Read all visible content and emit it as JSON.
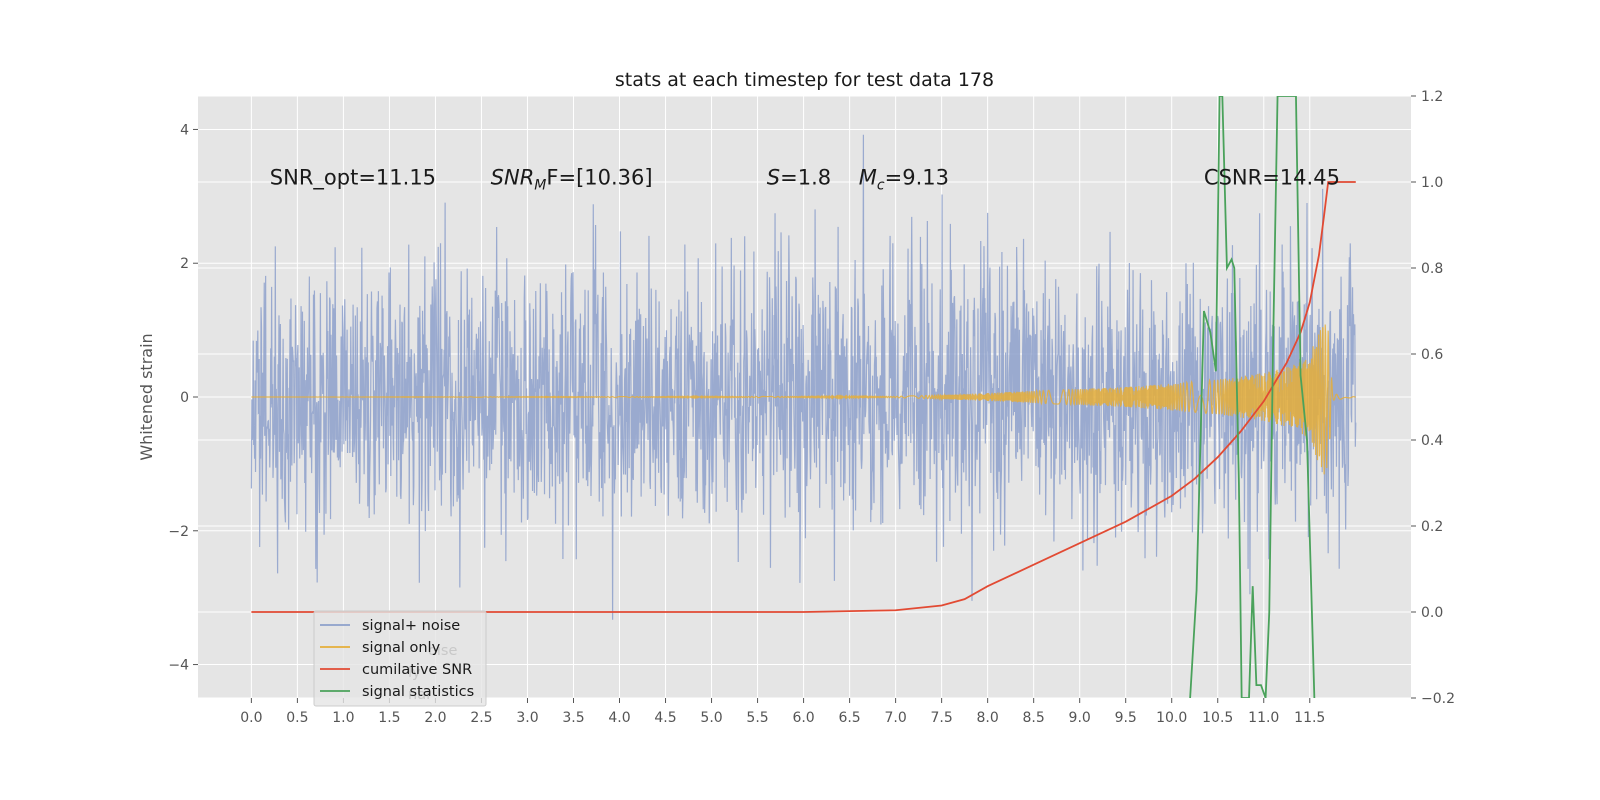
{
  "chart_data": {
    "type": "line",
    "title": "stats at each timestep for test data 178",
    "ylabel": "Whitened strain",
    "xlabel": "",
    "xlim": [
      -0.58,
      12.6
    ],
    "ylim": [
      -4.5,
      4.5
    ],
    "y2lim": [
      -0.2,
      1.2
    ],
    "x_ticks": [
      0.0,
      0.5,
      1.0,
      1.5,
      2.0,
      2.5,
      3.0,
      3.5,
      4.0,
      4.5,
      5.0,
      5.5,
      6.0,
      6.5,
      7.0,
      7.5,
      8.0,
      8.5,
      9.0,
      9.5,
      10.0,
      10.5,
      11.0,
      11.5
    ],
    "x_tick_labels": [
      "0.0",
      "0.5",
      "1.0",
      "1.5",
      "2.0",
      "2.5",
      "3.0",
      "3.5",
      "4.0",
      "4.5",
      "5.0",
      "5.5",
      "6.0",
      "6.5",
      "7.0",
      "7.5",
      "8.0",
      "8.5",
      "9.0",
      "9.5",
      "10.0",
      "10.5",
      "11.0",
      "11.5"
    ],
    "y_ticks": [
      -4,
      -2,
      0,
      2,
      4
    ],
    "y_tick_labels": [
      "−4",
      "−2",
      "0",
      "2",
      "4"
    ],
    "y2_ticks": [
      -0.2,
      0.0,
      0.2,
      0.4,
      0.6,
      0.8,
      1.0,
      1.2
    ],
    "y2_tick_labels": [
      "−0.2",
      "0.0",
      "0.2",
      "0.4",
      "0.6",
      "0.8",
      "1.0",
      "1.2"
    ],
    "grid": true,
    "legend_position": "lower-left",
    "series": [
      {
        "name": "signal+ noise",
        "color": "#8da0cb",
        "axis": "left",
        "x_range": [
          0.0,
          12.0
        ],
        "amplitude_range": [
          -3.9,
          4.1
        ]
      },
      {
        "name": "signal only",
        "color": "#e5ae38",
        "axis": "left",
        "x_range": [
          0.0,
          12.0
        ],
        "envelope": {
          "x": [
            0.0,
            7.0,
            7.5,
            8.0,
            8.5,
            9.0,
            9.5,
            10.0,
            10.5,
            11.0,
            11.3,
            11.5,
            11.65,
            11.7,
            11.75,
            12.0
          ],
          "amplitude": [
            0.0,
            0.01,
            0.03,
            0.06,
            0.09,
            0.12,
            0.15,
            0.2,
            0.26,
            0.36,
            0.46,
            0.62,
            1.2,
            1.0,
            0.05,
            0.0
          ]
        }
      },
      {
        "name": "cumilative SNR",
        "color": "#e24a33",
        "axis": "right",
        "x": [
          0.0,
          1.0,
          2.0,
          3.0,
          4.0,
          5.0,
          6.0,
          6.5,
          7.0,
          7.5,
          7.75,
          8.0,
          8.5,
          9.0,
          9.5,
          10.0,
          10.25,
          10.5,
          10.75,
          11.0,
          11.25,
          11.4,
          11.5,
          11.6,
          11.66,
          11.7,
          12.0
        ],
        "y": [
          0.0,
          0.0,
          0.0,
          0.0,
          0.0,
          0.0,
          0.0,
          0.002,
          0.004,
          0.015,
          0.03,
          0.06,
          0.11,
          0.16,
          0.21,
          0.27,
          0.31,
          0.36,
          0.42,
          0.49,
          0.58,
          0.65,
          0.72,
          0.83,
          0.93,
          1.0,
          1.0
        ]
      },
      {
        "name": "signal statistics",
        "color": "#348abd",
        "draw_color": "#4aa25b",
        "axis": "right",
        "x": [
          10.2,
          10.27,
          10.35,
          10.42,
          10.48,
          10.52,
          10.55,
          10.6,
          10.65,
          10.68,
          10.73,
          10.76,
          10.8,
          10.84,
          10.88,
          10.92,
          10.97,
          11.02,
          11.06,
          11.1,
          11.15,
          11.22,
          11.28,
          11.35,
          11.4,
          11.47,
          11.55
        ],
        "y": [
          -0.2,
          0.05,
          0.7,
          0.65,
          0.56,
          1.2,
          1.2,
          0.8,
          0.82,
          0.8,
          0.3,
          -0.2,
          -0.2,
          -0.2,
          0.06,
          -0.17,
          -0.17,
          -0.2,
          0.0,
          0.6,
          1.2,
          1.2,
          1.2,
          1.2,
          0.55,
          0.4,
          -0.2
        ]
      }
    ],
    "annotations": [
      {
        "text": "SNR_opt=11.15",
        "x": 0.2,
        "y": 3.3
      },
      {
        "text": "SNR_MF=[10.36]",
        "main": "SNR",
        "sub": "M",
        "rest": "F=[10.36]",
        "x": 2.6,
        "y": 3.3
      },
      {
        "text": "S=1.8",
        "main": "S",
        "rest": "=1.8",
        "x": 5.6,
        "y": 3.3
      },
      {
        "text": "M_c=9.13",
        "main": "M",
        "sub": "c",
        "rest": "=9.13",
        "x": 6.6,
        "y": 3.3
      },
      {
        "text": "CSNR=14.45",
        "x": 10.35,
        "y": 3.3
      }
    ],
    "legend_ghost_texts": [
      "oise",
      "ly",
      "nal"
    ]
  }
}
